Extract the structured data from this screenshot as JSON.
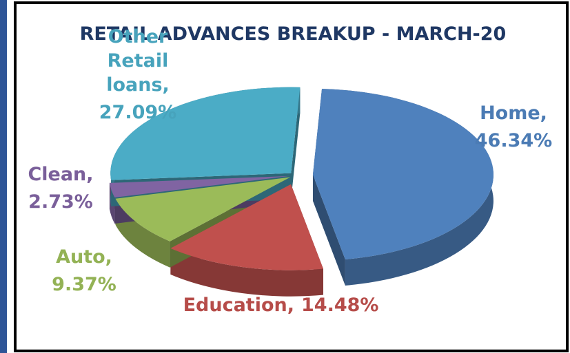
{
  "chart_data": {
    "type": "pie3d",
    "title": "RETAIL ADVANCES BREAKUP - MARCH-20",
    "categories": [
      "Home,",
      "Education,",
      "Auto,",
      "Clean,",
      "Other Retail loans,"
    ],
    "values": [
      46.34,
      14.48,
      9.37,
      2.73,
      27.09
    ],
    "value_labels": [
      "46.34%",
      "14.48%",
      "9.37%",
      "2.73%",
      "27.09%"
    ],
    "colors": [
      "#4f81bd",
      "#c0504d",
      "#9bbb59",
      "#8064a2",
      "#4bacc6"
    ]
  }
}
